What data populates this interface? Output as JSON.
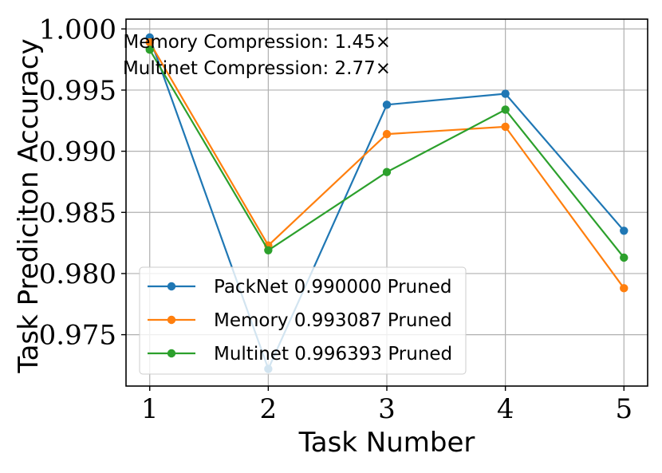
{
  "chart_data": {
    "type": "line",
    "title": "",
    "xlabel": "Task Number",
    "ylabel": "Task Prediciton Accuracy",
    "x": [
      1,
      2,
      3,
      4,
      5
    ],
    "xlim": [
      0.8,
      5.2
    ],
    "ylim": [
      0.9708,
      1.0008
    ],
    "xticks": [
      1,
      2,
      3,
      4,
      5
    ],
    "yticks": [
      0.975,
      0.98,
      0.985,
      0.99,
      0.995,
      1.0
    ],
    "ytick_labels": [
      "0.975",
      "0.980",
      "0.985",
      "0.990",
      "0.995",
      "1.000"
    ],
    "grid": true,
    "legend_position": "lower-left",
    "annotations": [
      "Memory Compression: 1.45×",
      "Multinet Compression: 2.77×"
    ],
    "series": [
      {
        "name": "PackNet 0.990000 Pruned",
        "color": "#1f77b4",
        "values": [
          0.9993,
          0.9722,
          0.9938,
          0.9947,
          0.9835
        ]
      },
      {
        "name": "Memory 0.993087 Pruned",
        "color": "#ff7f0e",
        "values": [
          0.9989,
          0.9823,
          0.9914,
          0.992,
          0.9788
        ]
      },
      {
        "name": "Multinet 0.996393 Pruned",
        "color": "#2ca02c",
        "values": [
          0.9983,
          0.9819,
          0.9883,
          0.9934,
          0.9813
        ]
      }
    ]
  }
}
